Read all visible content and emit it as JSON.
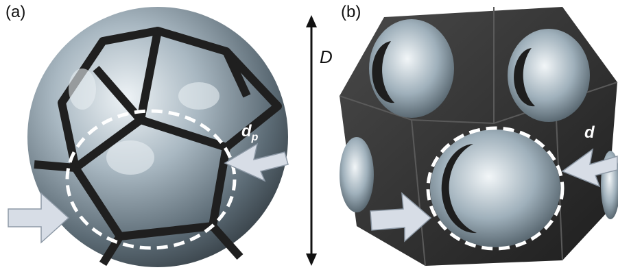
{
  "panels": [
    {
      "label": "(a)",
      "dimension_label": "d",
      "dimension_subscript": "p"
    },
    {
      "label": "(b)",
      "dimension_label": "d"
    }
  ],
  "overall_dimension_label": "D",
  "colors": {
    "frame_dark": "#2b2b2b",
    "glass_light": "#cfd8df",
    "glass_mid": "#7d8d99",
    "highlight_circle": "#ffffff",
    "arrow_fill": "#d7dde6",
    "text": "#111111"
  }
}
